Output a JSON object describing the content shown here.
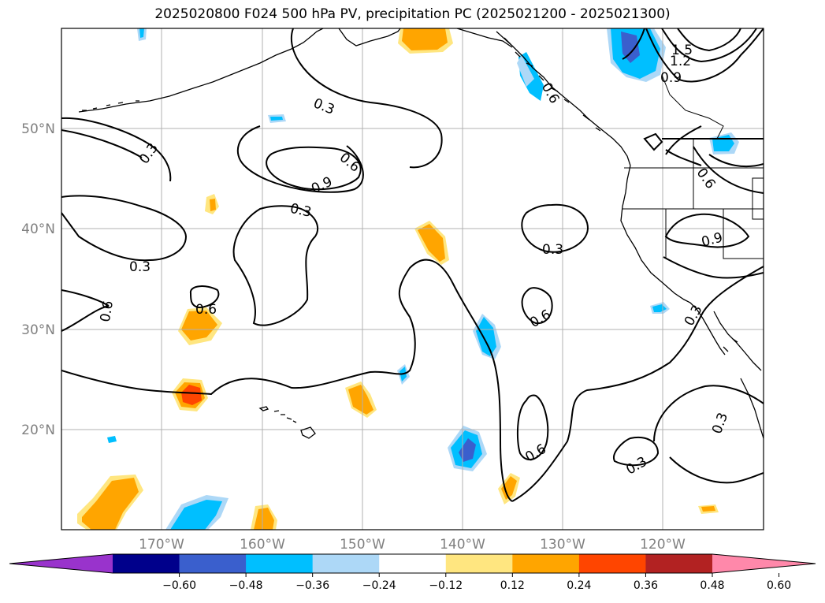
{
  "title": "2025020800 F024 500 hPa PV, precipitation PC (2025021200 - 2025021300)",
  "lat_labels": [
    "50°N",
    "40°N",
    "30°N",
    "20°N"
  ],
  "lon_labels": [
    "170°W",
    "160°W",
    "150°W",
    "140°W",
    "130°W",
    "120°W"
  ],
  "colorbar": {
    "tick_labels": [
      "−0.60",
      "−0.48",
      "−0.36",
      "−0.24",
      "−0.12",
      "0.12",
      "0.24",
      "0.36",
      "0.48",
      "0.60"
    ],
    "colors": [
      "#9933cc",
      "#00008b",
      "#3a5fcd",
      "#00bfff",
      "#add8f7",
      "#ffffff",
      "#ffe680",
      "#ffa500",
      "#ff4500",
      "#b22222",
      "#ff88aa"
    ]
  },
  "contour_labels": [
    "0.3",
    "0.6",
    "0.9",
    "1.2",
    "1.5"
  ]
}
